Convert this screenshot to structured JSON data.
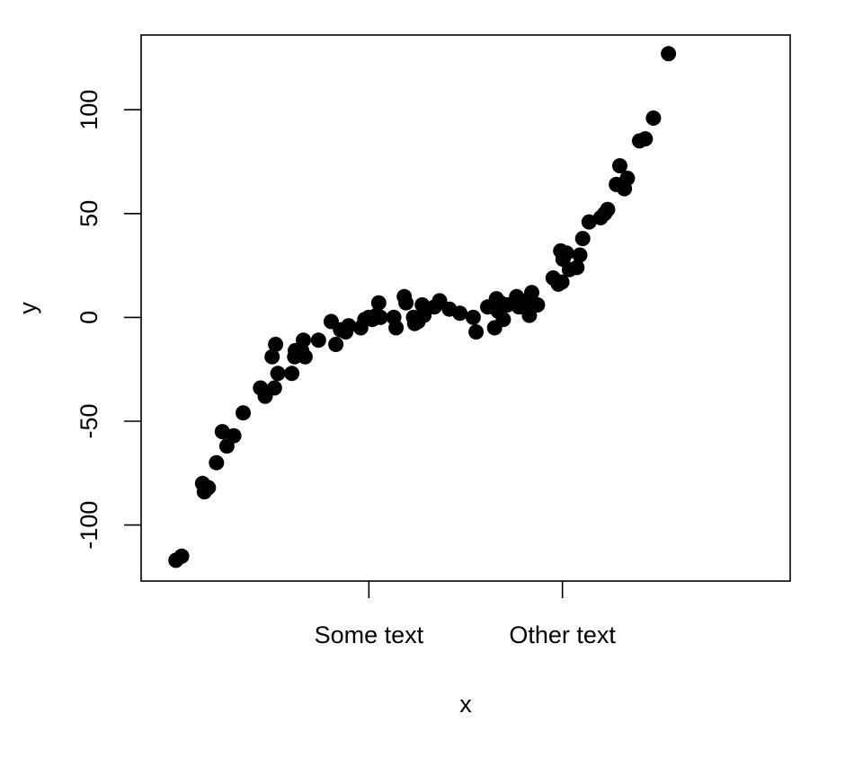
{
  "chart_data": {
    "type": "scatter",
    "title": "",
    "xlabel": "x",
    "ylabel": "y",
    "xlim": [
      -0.06,
      1.06
    ],
    "ylim": [
      -127,
      136
    ],
    "xticks": [
      {
        "value": 0.333,
        "label": "Some text"
      },
      {
        "value": 0.667,
        "label": "Other text"
      }
    ],
    "yticks": [
      -100,
      -50,
      0,
      50,
      100
    ],
    "grid": false,
    "point_color": "#000000",
    "points": [
      {
        "x": 0.0,
        "y": -117
      },
      {
        "x": 0.01,
        "y": -115
      },
      {
        "x": 0.046,
        "y": -80
      },
      {
        "x": 0.049,
        "y": -84
      },
      {
        "x": 0.056,
        "y": -82
      },
      {
        "x": 0.07,
        "y": -70
      },
      {
        "x": 0.08,
        "y": -55
      },
      {
        "x": 0.088,
        "y": -62
      },
      {
        "x": 0.1,
        "y": -57
      },
      {
        "x": 0.116,
        "y": -46
      },
      {
        "x": 0.146,
        "y": -34
      },
      {
        "x": 0.154,
        "y": -38
      },
      {
        "x": 0.166,
        "y": -19
      },
      {
        "x": 0.17,
        "y": -34
      },
      {
        "x": 0.172,
        "y": -13
      },
      {
        "x": 0.176,
        "y": -27
      },
      {
        "x": 0.2,
        "y": -27
      },
      {
        "x": 0.205,
        "y": -19
      },
      {
        "x": 0.206,
        "y": -16
      },
      {
        "x": 0.217,
        "y": -16
      },
      {
        "x": 0.22,
        "y": -11
      },
      {
        "x": 0.223,
        "y": -19
      },
      {
        "x": 0.246,
        "y": -11
      },
      {
        "x": 0.268,
        "y": -2
      },
      {
        "x": 0.276,
        "y": -13
      },
      {
        "x": 0.284,
        "y": -6
      },
      {
        "x": 0.293,
        "y": -7
      },
      {
        "x": 0.298,
        "y": -4
      },
      {
        "x": 0.319,
        "y": -5
      },
      {
        "x": 0.326,
        "y": -1
      },
      {
        "x": 0.333,
        "y": 0
      },
      {
        "x": 0.339,
        "y": -1
      },
      {
        "x": 0.346,
        "y": 1
      },
      {
        "x": 0.35,
        "y": 7
      },
      {
        "x": 0.353,
        "y": 0
      },
      {
        "x": 0.376,
        "y": 0
      },
      {
        "x": 0.38,
        "y": -5
      },
      {
        "x": 0.394,
        "y": 10
      },
      {
        "x": 0.397,
        "y": 7
      },
      {
        "x": 0.41,
        "y": 0
      },
      {
        "x": 0.412,
        "y": -3
      },
      {
        "x": 0.418,
        "y": -2
      },
      {
        "x": 0.425,
        "y": 6
      },
      {
        "x": 0.428,
        "y": 1
      },
      {
        "x": 0.446,
        "y": 5
      },
      {
        "x": 0.455,
        "y": 8
      },
      {
        "x": 0.472,
        "y": 4
      },
      {
        "x": 0.49,
        "y": 2
      },
      {
        "x": 0.513,
        "y": 0
      },
      {
        "x": 0.518,
        "y": -7
      },
      {
        "x": 0.538,
        "y": 5
      },
      {
        "x": 0.55,
        "y": -5
      },
      {
        "x": 0.553,
        "y": 9
      },
      {
        "x": 0.556,
        "y": 3
      },
      {
        "x": 0.56,
        "y": 7
      },
      {
        "x": 0.565,
        "y": -1
      },
      {
        "x": 0.572,
        "y": 6
      },
      {
        "x": 0.588,
        "y": 10
      },
      {
        "x": 0.592,
        "y": 5
      },
      {
        "x": 0.606,
        "y": 8
      },
      {
        "x": 0.61,
        "y": 1
      },
      {
        "x": 0.614,
        "y": 12
      },
      {
        "x": 0.624,
        "y": 6
      },
      {
        "x": 0.651,
        "y": 19
      },
      {
        "x": 0.66,
        "y": 16
      },
      {
        "x": 0.664,
        "y": 32
      },
      {
        "x": 0.666,
        "y": 17
      },
      {
        "x": 0.668,
        "y": 28
      },
      {
        "x": 0.674,
        "y": 31
      },
      {
        "x": 0.679,
        "y": 23
      },
      {
        "x": 0.692,
        "y": 24
      },
      {
        "x": 0.697,
        "y": 30
      },
      {
        "x": 0.702,
        "y": 38
      },
      {
        "x": 0.713,
        "y": 46
      },
      {
        "x": 0.733,
        "y": 48
      },
      {
        "x": 0.74,
        "y": 50
      },
      {
        "x": 0.745,
        "y": 52
      },
      {
        "x": 0.76,
        "y": 64
      },
      {
        "x": 0.766,
        "y": 73
      },
      {
        "x": 0.774,
        "y": 62
      },
      {
        "x": 0.779,
        "y": 67
      },
      {
        "x": 0.8,
        "y": 85
      },
      {
        "x": 0.81,
        "y": 86
      },
      {
        "x": 0.824,
        "y": 96
      },
      {
        "x": 0.85,
        "y": 127
      }
    ]
  }
}
